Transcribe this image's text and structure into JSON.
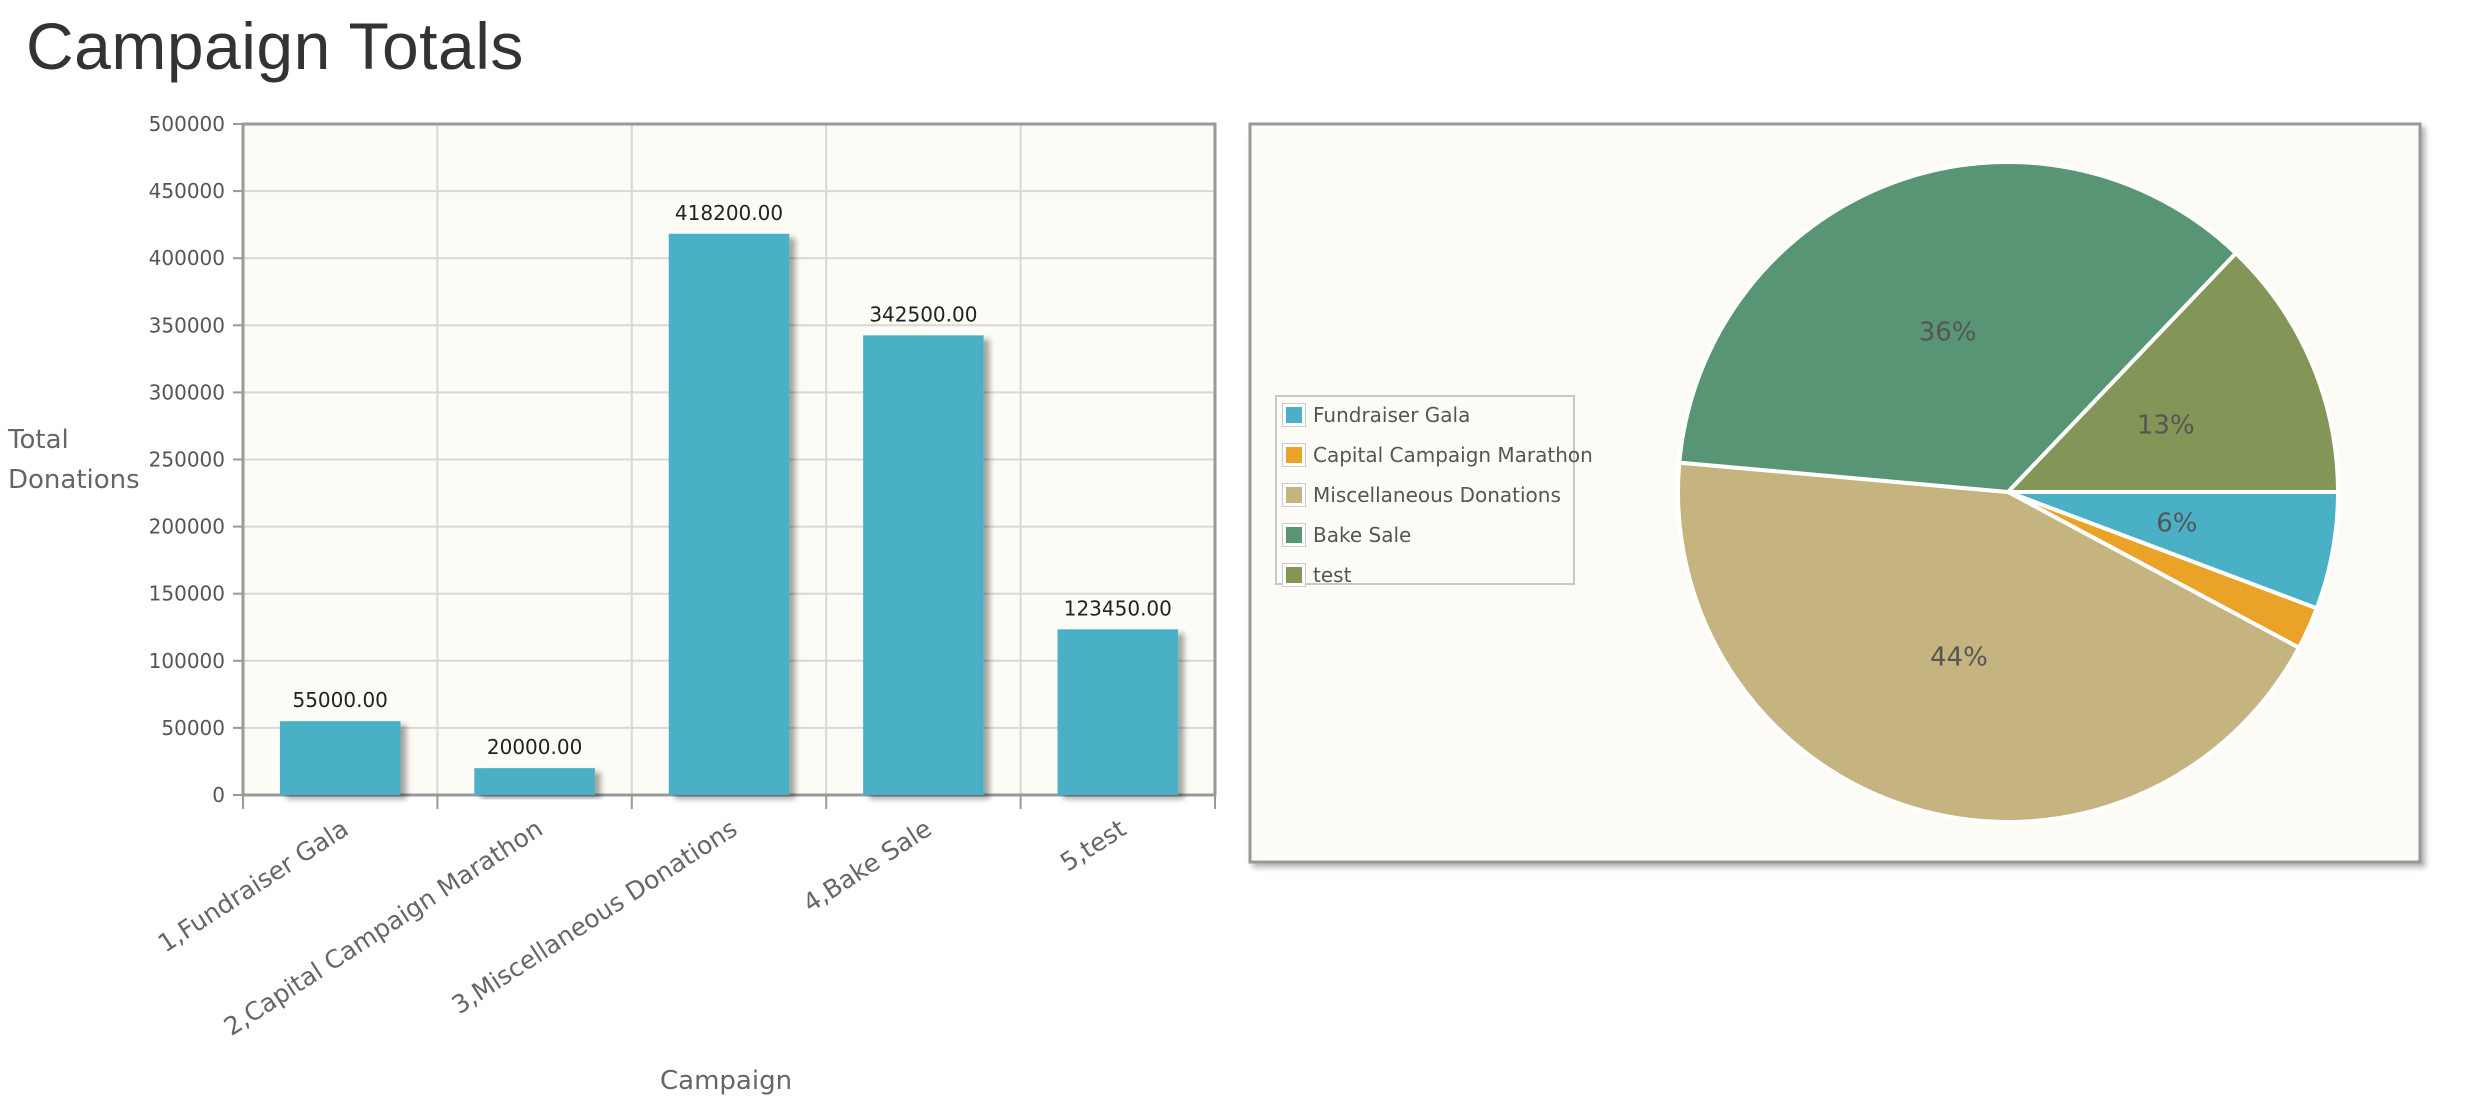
{
  "page": {
    "title": "Campaign Totals"
  },
  "chart_data": [
    {
      "type": "bar",
      "categories": [
        "1,Fundraiser Gala",
        "2,Capital Campaign Marathon",
        "3,Miscellaneous Donations",
        "4,Bake Sale",
        "5,test"
      ],
      "values": [
        55000.0,
        20000.0,
        418200.0,
        342500.0,
        123450.0
      ],
      "value_labels": [
        "55000.00",
        "20000.00",
        "418200.00",
        "342500.00",
        "123450.00"
      ],
      "ylabel_lines": [
        "Total",
        "Donations"
      ],
      "xlabel": "Campaign",
      "ylim": [
        0,
        500000
      ],
      "yticks": [
        0,
        50000,
        100000,
        150000,
        200000,
        250000,
        300000,
        350000,
        400000,
        450000,
        500000
      ],
      "grid": true,
      "colors": {
        "bar": "#4ab0c6",
        "plot_bg": "#fdfbf5",
        "grid": "#d8d8d8",
        "axis": "#999999"
      }
    },
    {
      "type": "pie",
      "slices": [
        {
          "name": "Fundraiser Gala",
          "value": 55000.0,
          "label": "6%",
          "color": "#4ab0c6"
        },
        {
          "name": "Capital Campaign Marathon",
          "value": 20000.0,
          "label": "",
          "color": "#eaa228"
        },
        {
          "name": "Miscellaneous Donations",
          "value": 418200.0,
          "label": "44%",
          "color": "#c5b47f"
        },
        {
          "name": "Bake Sale",
          "value": 342500.0,
          "label": "36%",
          "color": "#579575"
        },
        {
          "name": "test",
          "value": 123450.0,
          "label": "13%",
          "color": "#839557"
        }
      ],
      "legend": [
        "Fundraiser Gala",
        "Capital Campaign Marathon",
        "Miscellaneous Donations",
        "Bake Sale",
        "test"
      ],
      "legend_position": "left"
    }
  ]
}
